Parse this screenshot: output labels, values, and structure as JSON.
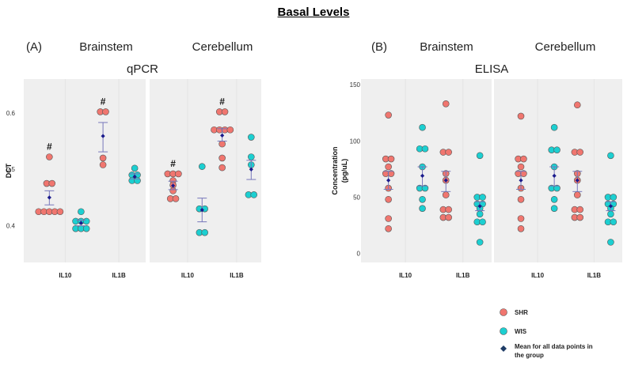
{
  "figure_title": "Basal Levels",
  "chart_data": [
    {
      "type": "scatter",
      "panel_label": "(A)",
      "title": "qPCR",
      "facets": [
        "Brainstem",
        "Cerebellum"
      ],
      "categories": [
        "IL10",
        "IL1B"
      ],
      "ylabel": "DCT",
      "ylim": [
        0.335,
        0.66
      ],
      "yticks": [
        0.4,
        0.5,
        0.6
      ],
      "ytick_labels": [
        "0.4",
        "0.5",
        "0.6"
      ],
      "groups": [
        {
          "facet": "Brainstem",
          "category": "IL10",
          "series": "SHR",
          "points": [
            0.425,
            0.425,
            0.425,
            0.425,
            0.425,
            0.475,
            0.475,
            0.522
          ],
          "mean": 0.45,
          "error": [
            0.437,
            0.462
          ],
          "annotation": "#"
        },
        {
          "facet": "Brainstem",
          "category": "IL10",
          "series": "WIS",
          "points": [
            0.395,
            0.395,
            0.395,
            0.408,
            0.408,
            0.408,
            0.425
          ],
          "mean": 0.405,
          "error": [
            0.4,
            0.41
          ]
        },
        {
          "facet": "Brainstem",
          "category": "IL1B",
          "series": "SHR",
          "points": [
            0.508,
            0.52,
            0.602,
            0.602
          ],
          "mean": 0.559,
          "error": [
            0.531,
            0.583
          ],
          "annotation": "#"
        },
        {
          "facet": "Brainstem",
          "category": "IL1B",
          "series": "WIS",
          "points": [
            0.48,
            0.48,
            0.49,
            0.49,
            0.502
          ],
          "mean": 0.487,
          "error": [
            0.483,
            0.492
          ]
        },
        {
          "facet": "Cerebellum",
          "category": "IL10",
          "series": "SHR",
          "points": [
            0.448,
            0.448,
            0.462,
            0.472,
            0.48,
            0.492,
            0.492,
            0.492
          ],
          "mean": 0.471,
          "error": [
            0.464,
            0.479
          ],
          "annotation": "#"
        },
        {
          "facet": "Cerebellum",
          "category": "IL10",
          "series": "WIS",
          "points": [
            0.388,
            0.388,
            0.43,
            0.43,
            0.505
          ],
          "mean": 0.428,
          "error": [
            0.407,
            0.449
          ]
        },
        {
          "facet": "Cerebellum",
          "category": "IL1B",
          "series": "SHR",
          "points": [
            0.503,
            0.52,
            0.545,
            0.57,
            0.57,
            0.57,
            0.57,
            0.602,
            0.602
          ],
          "mean": 0.56,
          "error": [
            0.55,
            0.572
          ],
          "annotation": "#"
        },
        {
          "facet": "Cerebellum",
          "category": "IL1B",
          "series": "WIS",
          "points": [
            0.455,
            0.455,
            0.508,
            0.522,
            0.557
          ],
          "mean": 0.5,
          "error": [
            0.482,
            0.516
          ]
        }
      ]
    },
    {
      "type": "scatter",
      "panel_label": "(B)",
      "title": "ELISA",
      "facets": [
        "Brainstem",
        "Cerebellum"
      ],
      "categories": [
        "IL10",
        "IL1B"
      ],
      "ylabel": "Concentration (pg/uL)",
      "ylim": [
        -8,
        155
      ],
      "yticks": [
        0,
        50,
        100,
        150
      ],
      "ytick_labels": [
        "0",
        "50",
        "100",
        "150"
      ],
      "groups": [
        {
          "facet": "Brainstem",
          "category": "IL10",
          "series": "SHR",
          "points": [
            22,
            31,
            48,
            58,
            71,
            71,
            77,
            84,
            84,
            123
          ],
          "mean": 65,
          "error": [
            57,
            73
          ]
        },
        {
          "facet": "Brainstem",
          "category": "IL10",
          "series": "WIS",
          "points": [
            40,
            48,
            58,
            58,
            77,
            93,
            93,
            112
          ],
          "mean": 69,
          "error": [
            60,
            77
          ]
        },
        {
          "facet": "Brainstem",
          "category": "IL1B",
          "series": "SHR",
          "points": [
            32,
            32,
            39,
            39,
            52,
            65,
            71,
            90,
            90,
            133
          ],
          "mean": 65,
          "error": [
            55,
            73
          ]
        },
        {
          "facet": "Brainstem",
          "category": "IL1B",
          "series": "WIS",
          "points": [
            10,
            28,
            28,
            35,
            40,
            44,
            44,
            50,
            50,
            87
          ],
          "mean": 42,
          "error": [
            38,
            46
          ]
        },
        {
          "facet": "Cerebellum",
          "category": "IL10",
          "series": "SHR",
          "points": [
            22,
            31,
            48,
            58,
            71,
            71,
            77,
            84,
            84,
            122
          ],
          "mean": 65,
          "error": [
            57,
            73
          ]
        },
        {
          "facet": "Cerebellum",
          "category": "IL10",
          "series": "WIS",
          "points": [
            40,
            48,
            58,
            58,
            77,
            92,
            92,
            112
          ],
          "mean": 69,
          "error": [
            60,
            77
          ]
        },
        {
          "facet": "Cerebellum",
          "category": "IL1B",
          "series": "SHR",
          "points": [
            32,
            32,
            39,
            39,
            52,
            65,
            71,
            90,
            90,
            132
          ],
          "mean": 65,
          "error": [
            55,
            73
          ]
        },
        {
          "facet": "Cerebellum",
          "category": "IL1B",
          "series": "WIS",
          "points": [
            10,
            28,
            28,
            35,
            40,
            44,
            44,
            50,
            50,
            87
          ],
          "mean": 42,
          "error": [
            38,
            46
          ]
        }
      ]
    }
  ],
  "legend": {
    "items": [
      {
        "label": "SHR",
        "marker": "circle",
        "color": "#f0766f"
      },
      {
        "label": "WIS",
        "marker": "circle",
        "color": "#1ccfd1"
      },
      {
        "label": "Mean for all data points in the group",
        "marker": "diamond",
        "color": "#1f3c66"
      }
    ]
  },
  "colors": {
    "SHR": "#f0766f",
    "WIS": "#1ccfd1",
    "mean": "#1a1a8c",
    "panel_bg": "#efefef",
    "marker_edge": "#555555",
    "errorbar": "#7777bb"
  }
}
